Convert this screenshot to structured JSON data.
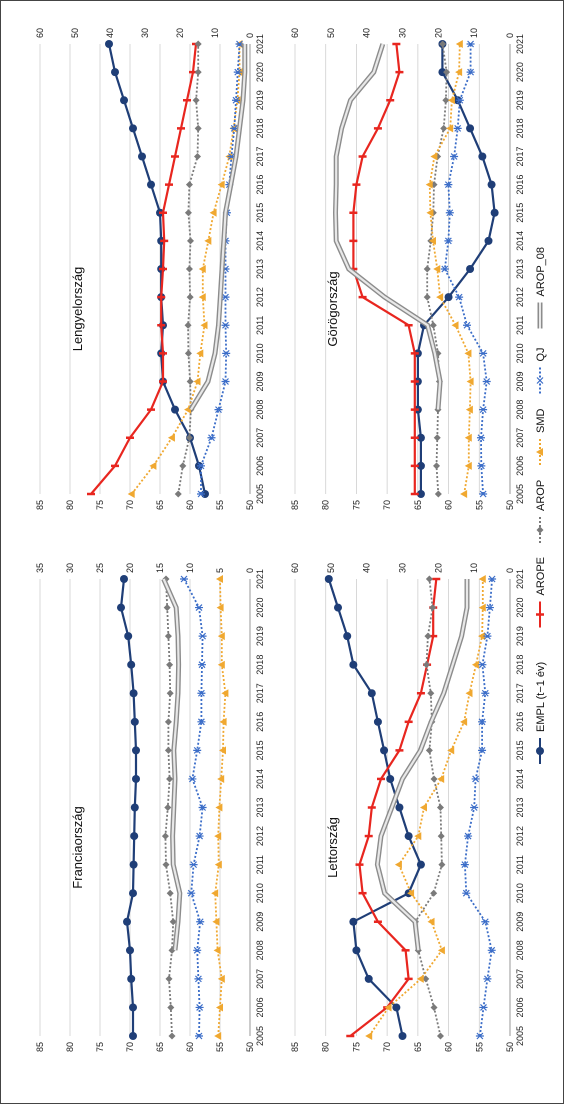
{
  "figure": {
    "legend_placement": "bottom (rotated with figure)",
    "orientation": "rotated 90 degrees counter-clockwise"
  },
  "chart_data": [
    {
      "type": "line",
      "title": "Franciaország",
      "x": [
        2005,
        2006,
        2007,
        2008,
        2009,
        2010,
        2011,
        2012,
        2013,
        2014,
        2015,
        2016,
        2017,
        2018,
        2019,
        2020,
        2021
      ],
      "ylim_left": [
        50,
        85
      ],
      "ylim_right": [
        0,
        35
      ],
      "left_ticks": [
        50,
        55,
        60,
        65,
        70,
        75,
        80,
        85
      ],
      "right_ticks": [
        0,
        5,
        10,
        15,
        20,
        25,
        30,
        35
      ],
      "series": [
        {
          "name": "EMPL (t−1 év)",
          "axis": "left",
          "values": [
            69.5,
            69.5,
            69.8,
            70.0,
            70.5,
            69.5,
            69.4,
            69.3,
            69.2,
            69.0,
            69.0,
            69.2,
            69.4,
            69.8,
            70.3,
            71.5,
            71.0
          ]
        },
        {
          "name": "AROPE",
          "axis": "left",
          "values": [
            null,
            null,
            null,
            null,
            null,
            null,
            null,
            null,
            null,
            null,
            null,
            null,
            null,
            null,
            null,
            null,
            null
          ]
        },
        {
          "name": "AROP",
          "axis": "right",
          "values": [
            13.0,
            13.2,
            13.5,
            13.0,
            12.8,
            13.3,
            14.0,
            14.1,
            13.7,
            13.4,
            13.6,
            13.6,
            13.3,
            13.4,
            13.6,
            13.8,
            14.0
          ]
        },
        {
          "name": "SMD",
          "axis": "right",
          "values": [
            5.3,
            5.0,
            4.7,
            5.4,
            5.6,
            5.8,
            5.2,
            5.3,
            5.1,
            4.8,
            4.5,
            4.4,
            4.1,
            4.7,
            4.7,
            4.9,
            5.0
          ]
        },
        {
          "name": "QJ",
          "axis": "right",
          "values": [
            8.5,
            8.4,
            8.6,
            8.8,
            8.3,
            9.8,
            9.4,
            8.4,
            7.9,
            9.6,
            8.8,
            8.1,
            8.1,
            8.0,
            7.9,
            8.5,
            11.0
          ]
        },
        {
          "name": "AROP_08",
          "axis": "right",
          "values": [
            null,
            null,
            null,
            12.5,
            12.0,
            11.7,
            12.8,
            12.9,
            12.7,
            12.5,
            12.7,
            12.3,
            12.0,
            11.9,
            12.0,
            12.3,
            14.4
          ]
        }
      ]
    },
    {
      "type": "line",
      "title": "Lengyelország",
      "x": [
        2005,
        2006,
        2007,
        2008,
        2009,
        2010,
        2011,
        2012,
        2013,
        2014,
        2015,
        2016,
        2017,
        2018,
        2019,
        2020,
        2021
      ],
      "ylim_left": [
        50,
        85
      ],
      "ylim_right": [
        0,
        60
      ],
      "left_ticks": [
        50,
        55,
        60,
        65,
        70,
        75,
        80,
        85
      ],
      "right_ticks": [
        0,
        10,
        20,
        30,
        40,
        50,
        60
      ],
      "series": [
        {
          "name": "EMPL (t−1 év)",
          "axis": "left",
          "values": [
            57.5,
            58.5,
            60.0,
            62.5,
            64.5,
            64.8,
            64.5,
            64.8,
            64.8,
            64.8,
            65.0,
            66.5,
            68.0,
            69.5,
            71.0,
            72.5,
            73.5
          ]
        },
        {
          "name": "AROPE",
          "axis": "left",
          "values": [
            76.5,
            72.5,
            70.0,
            66.5,
            64.5,
            64.5,
            64.8,
            64.8,
            64.5,
            64.3,
            64.5,
            63.5,
            62.5,
            61.5,
            60.5,
            59.5,
            59.0
          ]
        },
        {
          "name": "AROP",
          "axis": "right",
          "values": [
            20.5,
            19.2,
            17.3,
            16.9,
            17.1,
            17.6,
            17.7,
            17.1,
            17.3,
            17.0,
            17.6,
            17.3,
            15.0,
            14.8,
            15.4,
            14.8,
            14.8
          ]
        },
        {
          "name": "SMD",
          "axis": "right",
          "values": [
            33.8,
            27.6,
            22.3,
            17.7,
            15.0,
            14.2,
            13.0,
            13.5,
            13.5,
            11.9,
            10.4,
            8.1,
            5.9,
            4.7,
            3.6,
            3.0,
            3.0
          ]
        },
        {
          "name": "QJ",
          "axis": "right",
          "values": [
            14.0,
            14.0,
            11.0,
            9.0,
            7.0,
            6.8,
            7.0,
            7.0,
            7.0,
            7.0,
            6.6,
            5.9,
            5.3,
            4.5,
            4.0,
            3.5,
            3.0
          ]
        },
        {
          "name": "AROP_08",
          "axis": "right",
          "values": [
            null,
            null,
            null,
            16.9,
            12.0,
            10.0,
            9.0,
            8.5,
            8.0,
            7.5,
            7.0,
            5.5,
            4.0,
            3.0,
            2.0,
            1.5,
            1.5
          ]
        }
      ]
    },
    {
      "type": "line",
      "title": "Lettország",
      "x": [
        2005,
        2006,
        2007,
        2008,
        2009,
        2010,
        2011,
        2012,
        2013,
        2014,
        2015,
        2016,
        2017,
        2018,
        2019,
        2020,
        2021
      ],
      "ylim_left": [
        50,
        85
      ],
      "ylim_right": [
        0,
        60
      ],
      "left_ticks": [
        50,
        55,
        60,
        65,
        70,
        75,
        80,
        85
      ],
      "right_ticks": [
        0,
        10,
        20,
        30,
        40,
        50,
        60
      ],
      "series": [
        {
          "name": "EMPL (t−1 év)",
          "axis": "left",
          "values": [
            67.5,
            68.5,
            73.0,
            75.0,
            75.5,
            66.5,
            64.5,
            66.5,
            68.0,
            69.5,
            70.5,
            71.5,
            72.5,
            75.5,
            76.5,
            78.0,
            79.5
          ]
        },
        {
          "name": "AROPE",
          "axis": "left",
          "values": [
            76.0,
            70.0,
            66.5,
            67.0,
            71.5,
            74.0,
            74.5,
            73.0,
            72.5,
            71.0,
            68.0,
            66.5,
            64.5,
            63.5,
            62.5,
            62.5,
            62.0
          ]
        },
        {
          "name": "AROP",
          "axis": "right",
          "values": [
            19.4,
            21.2,
            23.5,
            25.6,
            26.4,
            21.3,
            19.0,
            19.2,
            19.4,
            21.2,
            22.5,
            21.8,
            22.1,
            23.3,
            22.9,
            21.6,
            22.5
          ]
        },
        {
          "name": "SMD",
          "axis": "right",
          "values": [
            39.3,
            33.9,
            24.9,
            19.0,
            21.9,
            27.6,
            31.0,
            25.6,
            24.0,
            19.2,
            16.4,
            12.8,
            11.3,
            9.5,
            7.8,
            7.6,
            7.6
          ]
        },
        {
          "name": "QJ",
          "axis": "right",
          "values": [
            8.4,
            7.4,
            6.3,
            5.1,
            6.9,
            12.2,
            12.6,
            11.7,
            10.0,
            9.6,
            7.8,
            7.8,
            6.9,
            7.7,
            6.3,
            5.6,
            5.0
          ]
        },
        {
          "name": "AROP_08",
          "axis": "right",
          "values": [
            null,
            null,
            null,
            25.6,
            26.5,
            35.0,
            37.0,
            36.0,
            33.0,
            30.0,
            25.0,
            22.0,
            18.5,
            16.0,
            13.5,
            12.0,
            12.0
          ]
        }
      ]
    },
    {
      "type": "line",
      "title": "Görögország",
      "x": [
        2005,
        2006,
        2007,
        2008,
        2009,
        2010,
        2011,
        2012,
        2013,
        2014,
        2015,
        2016,
        2017,
        2018,
        2019,
        2020,
        2021
      ],
      "ylim_left": [
        50,
        85
      ],
      "ylim_right": [
        0,
        60
      ],
      "left_ticks": [
        50,
        55,
        60,
        65,
        70,
        75,
        80,
        85
      ],
      "right_ticks": [
        0,
        10,
        20,
        30,
        40,
        50,
        60
      ],
      "series": [
        {
          "name": "EMPL (t−1 év)",
          "axis": "left",
          "values": [
            64.5,
            64.5,
            64.5,
            65.0,
            65.0,
            65.0,
            64.0,
            60.0,
            56.5,
            53.5,
            52.5,
            53.0,
            54.5,
            56.5,
            58.5,
            61.0,
            61.0
          ]
        },
        {
          "name": "AROPE",
          "axis": "left",
          "values": [
            65.5,
            65.5,
            65.5,
            65.5,
            65.5,
            65.5,
            66.5,
            74.0,
            75.5,
            75.5,
            75.5,
            75.0,
            74.0,
            71.5,
            69.5,
            68.0,
            68.5
          ]
        },
        {
          "name": "AROP",
          "axis": "right",
          "values": [
            20.0,
            20.5,
            20.3,
            20.1,
            19.7,
            20.1,
            21.4,
            23.1,
            23.1,
            22.1,
            21.4,
            21.2,
            20.2,
            18.5,
            17.9,
            17.7,
            18.8
          ]
        },
        {
          "name": "SMD",
          "axis": "right",
          "values": [
            12.8,
            11.5,
            11.5,
            11.2,
            11.0,
            11.6,
            15.2,
            19.5,
            20.3,
            21.5,
            22.2,
            22.4,
            21.1,
            16.7,
            16.2,
            14.2,
            14.0
          ]
        },
        {
          "name": "QJ",
          "axis": "right",
          "values": [
            7.5,
            8.0,
            8.1,
            7.5,
            6.5,
            7.5,
            12.0,
            14.2,
            18.2,
            17.2,
            16.8,
            17.2,
            15.6,
            14.6,
            14.0,
            11.0,
            11.0
          ]
        },
        {
          "name": "AROP_08",
          "axis": "right",
          "values": [
            null,
            null,
            null,
            20.1,
            19.5,
            21.0,
            23.0,
            35.0,
            45.0,
            48.5,
            48.7,
            48.5,
            48.5,
            47.0,
            44.5,
            38.0,
            35.5
          ]
        }
      ]
    }
  ],
  "legend": [
    {
      "name": "EMPL (t−1 év)",
      "color": "#1f3e77",
      "marker": "circle",
      "dash": "solid"
    },
    {
      "name": "AROPE",
      "color": "#e8261f",
      "marker": "bar",
      "dash": "solid"
    },
    {
      "name": "AROP",
      "color": "#7a7a7a",
      "marker": "diamond",
      "dash": "dot"
    },
    {
      "name": "SMD",
      "color": "#f0a830",
      "marker": "triangle",
      "dash": "dot"
    },
    {
      "name": "QJ",
      "color": "#3b6dc8",
      "marker": "x",
      "dash": "dot"
    },
    {
      "name": "AROP_08",
      "color": "#9a9a9a",
      "marker": "none",
      "dash": "double"
    }
  ]
}
